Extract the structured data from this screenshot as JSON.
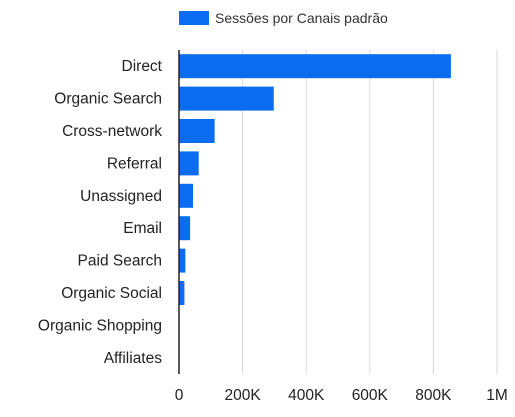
{
  "chart_data": {
    "type": "bar",
    "orientation": "horizontal",
    "categories": [
      "Direct",
      "Organic Search",
      "Cross-network",
      "Referral",
      "Unassigned",
      "Email",
      "Paid Search",
      "Organic Social",
      "Organic Shopping",
      "Affiliates"
    ],
    "series": [
      {
        "name": "Sessões por Canais padrão",
        "values": [
          855000,
          298000,
          112000,
          62000,
          44000,
          35000,
          20000,
          17000,
          1000,
          500
        ],
        "color": "#0a6df0"
      }
    ],
    "x_ticks": [
      {
        "value": 0,
        "label": "0"
      },
      {
        "value": 200000,
        "label": "200K"
      },
      {
        "value": 400000,
        "label": "400K"
      },
      {
        "value": 600000,
        "label": "600K"
      },
      {
        "value": 800000,
        "label": "800K"
      },
      {
        "value": 1000000,
        "label": "1M"
      }
    ],
    "xlim": [
      0,
      1000000
    ],
    "grid": "vertical",
    "legend_position": "top"
  }
}
